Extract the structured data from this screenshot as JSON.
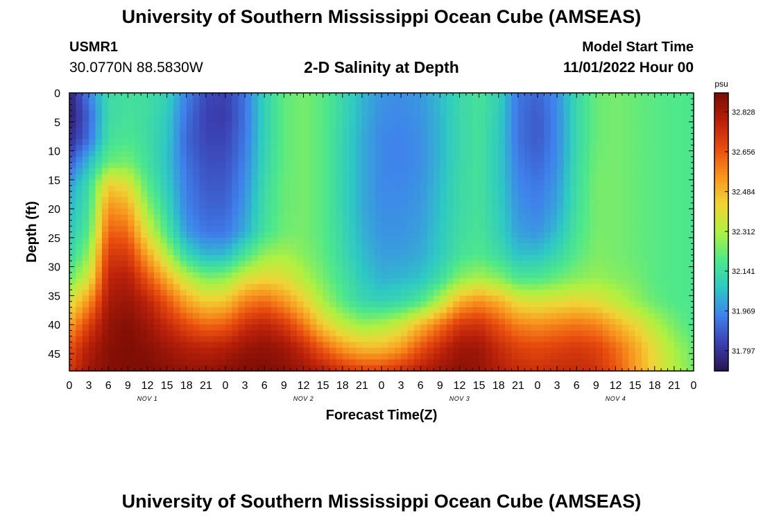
{
  "page": {
    "title_top": "University of Southern Mississippi Ocean Cube (AMSEAS)",
    "title_bottom": "University of Southern Mississippi Ocean Cube (AMSEAS)",
    "station_id": "USMR1",
    "station_location": "30.0770N  88.5830W",
    "subtitle": "2-D Salinity at Depth",
    "model_start_label": "Model Start Time",
    "model_start_value": "11/01/2022 Hour 00"
  },
  "colors": {
    "scale": [
      "#2a1450",
      "#3b3fb0",
      "#3f82ec",
      "#2ec9c4",
      "#4fe88a",
      "#b0f040",
      "#f0d436",
      "#f8941e",
      "#e84c0e",
      "#b8200a",
      "#7a0c04"
    ]
  },
  "chart_data": {
    "type": "heatmap",
    "title": "2-D Salinity at Depth",
    "xlabel": "Forecast Time(Z)",
    "ylabel": "Depth (ft)",
    "colorbar_label": "psu",
    "x_range": [
      0,
      96
    ],
    "y_range": [
      0,
      48
    ],
    "y_inverted": true,
    "x_tick_labels": [
      "0",
      "3",
      "6",
      "9",
      "12",
      "15",
      "18",
      "21",
      "0",
      "3",
      "6",
      "9",
      "12",
      "15",
      "18",
      "21",
      "0",
      "3",
      "6",
      "9",
      "12",
      "15",
      "18",
      "21",
      "0",
      "3",
      "6",
      "9",
      "12",
      "15",
      "18",
      "21",
      "0"
    ],
    "y_tick_values": [
      0,
      5,
      10,
      15,
      20,
      25,
      30,
      35,
      40,
      45
    ],
    "y_tick_labels": [
      "0",
      "5",
      "10",
      "15",
      "20",
      "25",
      "30",
      "35",
      "40",
      "45"
    ],
    "day_labels": [
      {
        "label": "NOV 1",
        "hour": 12
      },
      {
        "label": "NOV 2",
        "hour": 36
      },
      {
        "label": "NOV 3",
        "hour": 60
      },
      {
        "label": "NOV 4",
        "hour": 84
      }
    ],
    "colorbar_range": [
      31.71,
      32.91
    ],
    "colorbar_ticks": [
      "32.828",
      "32.656",
      "32.484",
      "32.312",
      "32.141",
      "31.969",
      "31.797"
    ],
    "colorbar_tick_values": [
      32.828,
      32.656,
      32.484,
      32.312,
      32.141,
      31.969,
      31.797
    ],
    "depths": [
      0,
      4,
      8,
      12,
      16,
      20,
      24,
      28,
      32,
      36,
      40,
      44,
      48
    ],
    "hours": [
      0,
      3,
      6,
      9,
      12,
      15,
      18,
      21,
      24,
      27,
      30,
      33,
      36,
      39,
      42,
      45,
      48,
      51,
      54,
      57,
      60,
      63,
      66,
      69,
      72,
      75,
      78,
      81,
      84,
      87,
      90,
      93,
      96
    ],
    "values": [
      [
        31.75,
        31.95,
        32.13,
        32.15,
        32.14,
        32.1,
        31.95,
        31.85,
        31.83,
        31.93,
        32.1,
        32.21,
        32.24,
        32.2,
        32.12,
        32.04,
        31.98,
        31.97,
        31.99,
        32.05,
        32.12,
        32.16,
        32.1,
        31.93,
        31.9,
        31.97,
        32.12,
        32.22,
        32.24,
        32.22,
        32.2,
        32.19,
        32.18
      ],
      [
        31.74,
        31.9,
        32.13,
        32.16,
        32.14,
        32.08,
        31.92,
        31.83,
        31.82,
        31.92,
        32.1,
        32.21,
        32.24,
        32.2,
        32.12,
        32.03,
        31.97,
        31.96,
        31.98,
        32.04,
        32.12,
        32.16,
        32.09,
        31.92,
        31.88,
        31.96,
        32.12,
        32.22,
        32.24,
        32.22,
        32.2,
        32.19,
        32.18
      ],
      [
        31.78,
        31.92,
        32.15,
        32.18,
        32.14,
        32.07,
        31.9,
        31.84,
        31.84,
        31.93,
        32.1,
        32.21,
        32.24,
        32.2,
        32.11,
        32.02,
        31.96,
        31.95,
        31.97,
        32.04,
        32.12,
        32.16,
        32.08,
        31.92,
        31.88,
        31.96,
        32.12,
        32.22,
        32.24,
        32.22,
        32.2,
        32.19,
        32.18
      ],
      [
        31.88,
        32.05,
        32.22,
        32.24,
        32.15,
        32.06,
        31.92,
        31.86,
        31.86,
        31.95,
        32.11,
        32.21,
        32.24,
        32.2,
        32.11,
        32.02,
        31.96,
        31.95,
        31.97,
        32.04,
        32.12,
        32.16,
        32.08,
        31.94,
        31.9,
        31.97,
        32.13,
        32.23,
        32.24,
        32.22,
        32.2,
        32.19,
        32.18
      ],
      [
        32.0,
        32.14,
        32.45,
        32.4,
        32.2,
        32.08,
        31.94,
        31.88,
        31.88,
        31.97,
        32.13,
        32.22,
        32.24,
        32.2,
        32.11,
        32.02,
        31.96,
        31.96,
        31.98,
        32.05,
        32.13,
        32.16,
        32.08,
        31.96,
        31.93,
        31.99,
        32.14,
        32.24,
        32.24,
        32.22,
        32.2,
        32.19,
        32.18
      ],
      [
        32.04,
        32.16,
        32.56,
        32.52,
        32.28,
        32.12,
        31.95,
        31.9,
        31.9,
        31.99,
        32.14,
        32.22,
        32.24,
        32.2,
        32.11,
        32.02,
        31.97,
        31.97,
        31.99,
        32.06,
        32.13,
        32.16,
        32.09,
        31.98,
        31.95,
        32.01,
        32.15,
        32.24,
        32.24,
        32.22,
        32.2,
        32.19,
        32.18
      ],
      [
        32.07,
        32.2,
        32.64,
        32.62,
        32.38,
        32.18,
        31.99,
        31.93,
        31.93,
        32.02,
        32.16,
        32.23,
        32.24,
        32.2,
        32.12,
        32.03,
        31.98,
        31.98,
        32.0,
        32.07,
        32.14,
        32.17,
        32.1,
        32.0,
        31.98,
        32.05,
        32.17,
        32.24,
        32.24,
        32.22,
        32.2,
        32.19,
        32.18
      ],
      [
        32.12,
        32.28,
        32.72,
        32.72,
        32.52,
        32.32,
        32.12,
        32.04,
        32.05,
        32.17,
        32.28,
        32.3,
        32.26,
        32.21,
        32.13,
        32.05,
        32.0,
        32.0,
        32.02,
        32.08,
        32.16,
        32.19,
        32.14,
        32.06,
        32.06,
        32.12,
        32.2,
        32.25,
        32.24,
        32.22,
        32.2,
        32.19,
        32.18
      ],
      [
        32.22,
        32.38,
        32.78,
        32.8,
        32.66,
        32.5,
        32.34,
        32.25,
        32.27,
        32.38,
        32.42,
        32.4,
        32.32,
        32.24,
        32.16,
        32.08,
        32.03,
        32.04,
        32.06,
        32.14,
        32.26,
        32.3,
        32.26,
        32.18,
        32.18,
        32.22,
        32.26,
        32.28,
        32.26,
        32.24,
        32.2,
        32.19,
        32.18
      ],
      [
        32.38,
        32.55,
        32.82,
        32.85,
        32.78,
        32.66,
        32.52,
        32.44,
        32.46,
        32.58,
        32.62,
        32.55,
        32.44,
        32.3,
        32.2,
        32.12,
        32.1,
        32.12,
        32.18,
        32.32,
        32.5,
        32.56,
        32.5,
        32.4,
        32.38,
        32.4,
        32.42,
        32.4,
        32.34,
        32.28,
        32.22,
        32.19,
        32.18
      ],
      [
        32.52,
        32.7,
        32.86,
        32.89,
        32.84,
        32.76,
        32.68,
        32.62,
        32.64,
        32.74,
        32.78,
        32.72,
        32.6,
        32.44,
        32.34,
        32.28,
        32.3,
        32.36,
        32.48,
        32.6,
        32.72,
        32.74,
        32.66,
        32.58,
        32.56,
        32.58,
        32.6,
        32.58,
        32.5,
        32.42,
        32.32,
        32.24,
        32.18
      ],
      [
        32.66,
        32.8,
        32.88,
        32.9,
        32.88,
        32.84,
        32.8,
        32.78,
        32.8,
        32.85,
        32.87,
        32.84,
        32.76,
        32.64,
        32.54,
        32.48,
        32.48,
        32.54,
        32.66,
        32.76,
        32.84,
        32.84,
        32.76,
        32.7,
        32.68,
        32.7,
        32.72,
        32.7,
        32.62,
        32.52,
        32.4,
        32.3,
        32.22
      ],
      [
        32.72,
        32.84,
        32.89,
        32.9,
        32.9,
        32.88,
        32.86,
        32.86,
        32.88,
        32.9,
        32.9,
        32.88,
        32.84,
        32.8,
        32.74,
        32.7,
        32.7,
        32.74,
        32.8,
        32.84,
        32.88,
        32.86,
        32.8,
        32.76,
        32.74,
        32.76,
        32.76,
        32.74,
        32.66,
        32.54,
        32.42,
        32.32,
        32.24
      ]
    ]
  }
}
